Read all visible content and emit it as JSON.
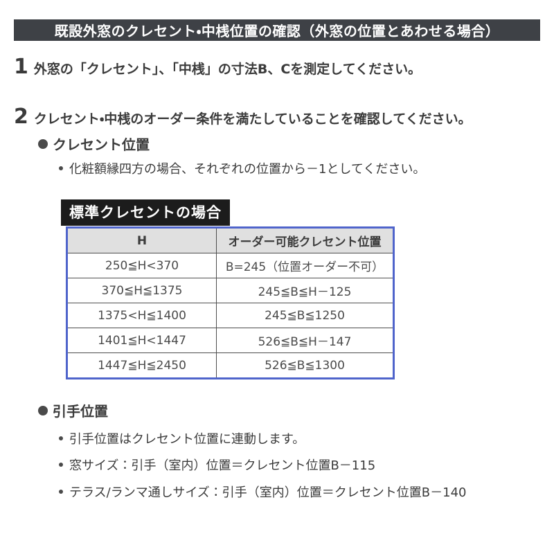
{
  "title": "既設外窓のクレセント・中桟位置の確認（外窓の位置とあわせる場合）",
  "steps": [
    {
      "number": "1",
      "text": "外窓の「クレセント」、「中桟」の寸法B、Cを測定してください。"
    },
    {
      "number": "2",
      "text": "クレセント・中桟のオーダー条件を満たしていることを確認してください。"
    }
  ],
  "crescent_section": {
    "heading": "クレセント位置",
    "note": "化粧額縁四方の場合、それぞれの位置から－1としてください。",
    "table_label": "標準クレセントの場合",
    "table": {
      "headers": [
        "H",
        "オーダー可能クレセント位置"
      ],
      "rows": [
        [
          "250≦H<370",
          "B=245（位置オーダー不可）"
        ],
        [
          "370≦H≦1375",
          "245≦B≦H－125"
        ],
        [
          "1375<H≦1400",
          "245≦B≦1250"
        ],
        [
          "1401≦H<1447",
          "526≦B≦H－147"
        ],
        [
          "1447≦H≦2450",
          "526≦B≦1300"
        ]
      ]
    }
  },
  "handle_section": {
    "heading": "引手位置",
    "notes": [
      "引手位置はクレセント位置に連動します。",
      "窓サイズ：引手（室内）位置＝クレセント位置B－115",
      "テラス/ランマ通しサイズ：引手（室内）位置＝クレセント位置B－140"
    ]
  },
  "colors": {
    "banner_bg": "#3e4146",
    "label_bg": "#1c1c1c",
    "table_border": "#4f64cb",
    "table_header_bg": "#e0e0e0",
    "text": "#3b3b3b"
  }
}
